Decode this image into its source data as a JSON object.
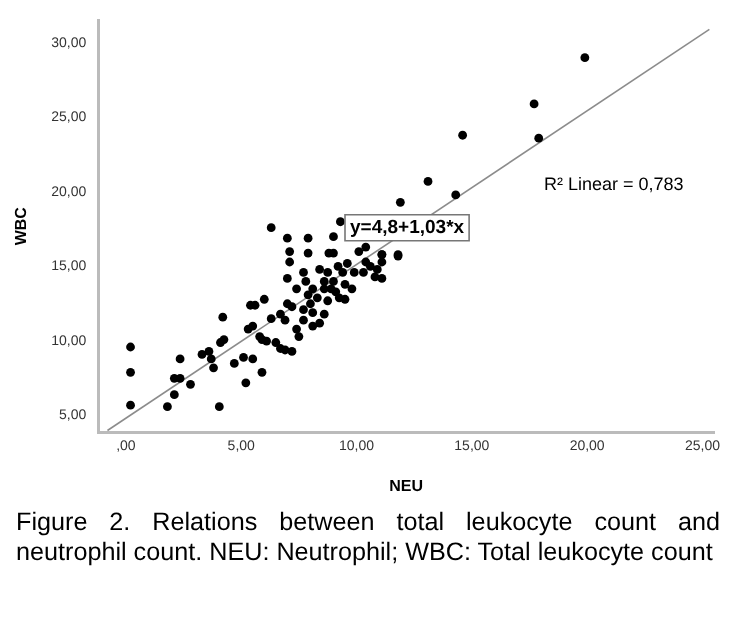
{
  "chart_data": {
    "type": "scatter",
    "title": "Figure 2. Relations between total leukocyte count and neutrophil count. NEU: Neutrophil; WBC: Total leukocyte count",
    "xlabel": "NEU",
    "ylabel": "WBC",
    "xlim": [
      -1.2,
      25.5
    ],
    "ylim": [
      3.9,
      31.5
    ],
    "xticks": [
      {
        "value": 0,
        "label": ",00"
      },
      {
        "value": 5,
        "label": "5,00"
      },
      {
        "value": 10,
        "label": "10,00"
      },
      {
        "value": 15,
        "label": "15,00"
      },
      {
        "value": 20,
        "label": "20,00"
      },
      {
        "value": 25,
        "label": "25,00"
      }
    ],
    "yticks": [
      {
        "value": 5,
        "label": "5,00"
      },
      {
        "value": 10,
        "label": "10,00"
      },
      {
        "value": 15,
        "label": "15,00"
      },
      {
        "value": 20,
        "label": "20,00"
      },
      {
        "value": 25,
        "label": "25,00"
      },
      {
        "value": 30,
        "label": "30,00"
      }
    ],
    "grid": false,
    "legend": false,
    "marker": "circle",
    "annotations": [
      {
        "text": "y=4,8+1,03*x",
        "x": 9.5,
        "y": 17.6
      },
      "R² Linear = 0,783"
    ],
    "series": [
      {
        "color": "#000000",
        "x": [
          19.9,
          17.7,
          17.9,
          14.6,
          13.1,
          14.3,
          11.9,
          11.1,
          11.8,
          6.3,
          9.3,
          7.0,
          7.9,
          0.2,
          0.2,
          0.2,
          1.8,
          2.1,
          2.1,
          2.35,
          2.35,
          2.8,
          3.3,
          3.6,
          3.7,
          3.8,
          4.1,
          4.25,
          4.2,
          4.05,
          4.7,
          5.2,
          5.1,
          5.5,
          5.3,
          5.5,
          5.4,
          5.6,
          5.9,
          6.0,
          5.8,
          5.9,
          6.1,
          6.3,
          6.5,
          6.7,
          6.9,
          6.7,
          7.0,
          7.2,
          6.9,
          7.2,
          7.0,
          7.1,
          7.4,
          7.4,
          7.5,
          7.7,
          7.7,
          7.8,
          7.7,
          7.9,
          8.0,
          8.1,
          8.1,
          8.1,
          8.3,
          8.4,
          8.4,
          8.6,
          8.6,
          8.6,
          8.75,
          8.75,
          8.8,
          8.9,
          9.0,
          9.1,
          9.2,
          9.25,
          9.4,
          9.5,
          9.5,
          9.6,
          9.8,
          9.9,
          10.1,
          10.3,
          10.4,
          10.6,
          10.8,
          10.9,
          11.1,
          11.1,
          11.1,
          11.8,
          10.4,
          9.0,
          7.1,
          7.9,
          9.0
        ],
        "values": [
          29.0,
          25.9,
          23.6,
          23.8,
          20.7,
          19.8,
          19.3,
          15.8,
          15.8,
          17.6,
          18.0,
          16.9,
          16.9,
          9.6,
          7.9,
          5.7,
          5.6,
          6.4,
          7.5,
          7.5,
          8.8,
          7.1,
          9.1,
          9.3,
          8.8,
          8.2,
          9.9,
          10.1,
          11.6,
          5.6,
          8.5,
          7.2,
          8.9,
          8.8,
          10.8,
          11.0,
          12.4,
          12.4,
          7.9,
          12.8,
          10.3,
          10.1,
          10.0,
          11.5,
          9.9,
          9.5,
          11.4,
          11.8,
          12.5,
          12.3,
          9.4,
          9.3,
          14.2,
          15.3,
          13.5,
          10.8,
          10.3,
          12.1,
          14.6,
          14.0,
          11.4,
          13.1,
          12.5,
          11.0,
          11.9,
          13.5,
          12.9,
          11.2,
          14.8,
          14.0,
          13.5,
          11.8,
          14.6,
          12.7,
          15.9,
          13.5,
          14.0,
          13.3,
          15.0,
          12.9,
          14.6,
          13.8,
          12.8,
          15.2,
          13.5,
          14.6,
          16.0,
          14.6,
          15.3,
          15.0,
          14.3,
          14.8,
          15.8,
          15.3,
          14.2,
          15.7,
          16.3,
          17.0,
          16.0,
          15.9,
          15.9
        ]
      },
      {
        "type": "line",
        "color": "#8c8c8c",
        "marker": "none",
        "x": [
          -0.8,
          25.3
        ],
        "values": [
          4.0,
          30.9
        ]
      }
    ]
  }
}
